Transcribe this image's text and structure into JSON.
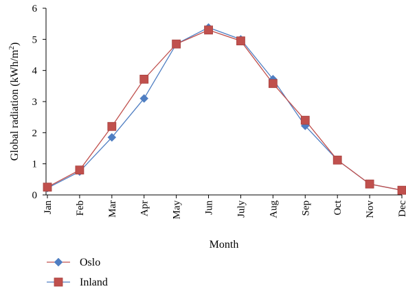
{
  "chart_data": {
    "type": "line",
    "categories": [
      "Jan",
      "Feb",
      "Mar",
      "Apr",
      "May",
      "Jun",
      "July",
      "Aug",
      "Sep",
      "Oct",
      "Nov",
      "Dec"
    ],
    "series": [
      {
        "name": "Oslo",
        "values": [
          0.22,
          0.75,
          1.85,
          3.1,
          4.85,
          5.38,
          5.0,
          3.72,
          2.22,
          1.12,
          0.35,
          0.15
        ],
        "color": "#4f7ec2",
        "marker": "diamond"
      },
      {
        "name": "Inland",
        "values": [
          0.25,
          0.8,
          2.2,
          3.72,
          4.85,
          5.3,
          4.95,
          3.58,
          2.4,
          1.12,
          0.35,
          0.15
        ],
        "color": "#c0504d",
        "marker": "square"
      }
    ],
    "xlabel": "Month",
    "ylabel": "Global radiation (kWh/m²)",
    "ylabel_main": "Global radiation (kWh/m",
    "ylabel_sup": "2",
    "ylabel_end": ")",
    "ylim": [
      0,
      6
    ],
    "yticks": [
      "0",
      "1",
      "2",
      "3",
      "4",
      "5",
      "6"
    ],
    "grid": false,
    "legend_position": "bottom-left"
  }
}
